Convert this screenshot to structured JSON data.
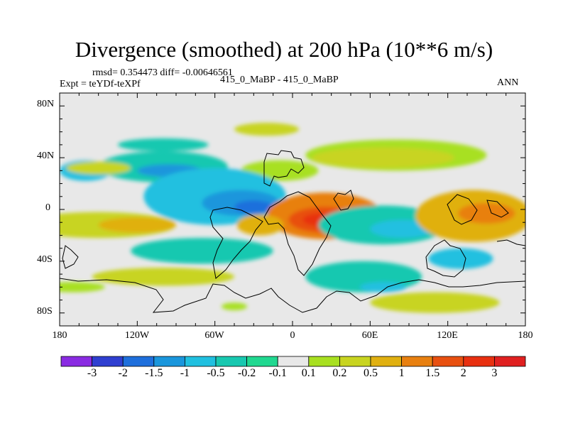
{
  "header": {
    "title": "Divergence (smoothed) at 200 hPa (10**6 m/s)",
    "stats": "rmsd= 0.354473 diff= -0.00646561",
    "experiment": "Expt = teYDf-teXPf",
    "cases": "415_0_MaBP - 415_0_MaBP",
    "season": "ANN"
  },
  "chart_data": {
    "type": "heatmap",
    "title": "Divergence (smoothed) at 200 hPa (10**6 m/s)",
    "projection": "cylindrical equidistant",
    "xlim": [
      -180,
      180
    ],
    "ylim": [
      -90,
      90
    ],
    "x_ticks": [
      {
        "value": -180,
        "label": "180"
      },
      {
        "value": -120,
        "label": "120W"
      },
      {
        "value": -60,
        "label": "60W"
      },
      {
        "value": 0,
        "label": "0"
      },
      {
        "value": 60,
        "label": "60E"
      },
      {
        "value": 120,
        "label": "120E"
      },
      {
        "value": 180,
        "label": "180"
      }
    ],
    "y_ticks": [
      {
        "value": 80,
        "label": "80N"
      },
      {
        "value": 40,
        "label": "40N"
      },
      {
        "value": 0,
        "label": "0"
      },
      {
        "value": -40,
        "label": "40S"
      },
      {
        "value": -80,
        "label": "80S"
      }
    ],
    "colorbar": {
      "levels": [
        "-3",
        "-2",
        "-1.5",
        "-1",
        "-0.5",
        "-0.2",
        "-0.1",
        "0.1",
        "0.2",
        "0.5",
        "1",
        "1.5",
        "2",
        "3"
      ],
      "colors": [
        "#8a2be2",
        "#2f3fd0",
        "#1e6fdc",
        "#1a96dc",
        "#20c0e0",
        "#18c8b0",
        "#20d890",
        "#e8e8e8",
        "#a8e020",
        "#c8d420",
        "#e0b010",
        "#e88010",
        "#e85010",
        "#e83010",
        "#e02020"
      ]
    },
    "field": [
      {
        "level": 9,
        "lon": -20,
        "lat": 62,
        "rlon": 25,
        "rlat": 5
      },
      {
        "level": 5,
        "lon": -100,
        "lat": 50,
        "rlon": 35,
        "rlat": 5
      },
      {
        "level": 8,
        "lon": 80,
        "lat": 42,
        "rlon": 70,
        "rlat": 12
      },
      {
        "level": 9,
        "lon": 70,
        "lat": 40,
        "rlon": 55,
        "rlat": 8
      },
      {
        "level": 5,
        "lon": -100,
        "lat": 33,
        "rlon": 50,
        "rlat": 12
      },
      {
        "level": 3,
        "lon": -95,
        "lat": 30,
        "rlon": 25,
        "rlat": 5
      },
      {
        "level": 4,
        "lon": -160,
        "lat": 30,
        "rlon": 20,
        "rlat": 8
      },
      {
        "level": 9,
        "lon": -150,
        "lat": 32,
        "rlon": 25,
        "rlat": 5
      },
      {
        "level": 8,
        "lon": -10,
        "lat": 30,
        "rlon": 30,
        "rlat": 8
      },
      {
        "level": 4,
        "lon": -60,
        "lat": 10,
        "rlon": 55,
        "rlat": 22
      },
      {
        "level": 3,
        "lon": -40,
        "lat": 5,
        "rlon": 30,
        "rlat": 10
      },
      {
        "level": 2,
        "lon": -30,
        "lat": 2,
        "rlon": 15,
        "rlat": 5
      },
      {
        "level": 9,
        "lon": -150,
        "lat": -12,
        "rlon": 60,
        "rlat": 10
      },
      {
        "level": 10,
        "lon": -120,
        "lat": -12,
        "rlon": 30,
        "rlat": 6
      },
      {
        "level": 11,
        "lon": 25,
        "lat": -5,
        "rlon": 45,
        "rlat": 18
      },
      {
        "level": 12,
        "lon": 25,
        "lat": -8,
        "rlon": 28,
        "rlat": 10
      },
      {
        "level": 13,
        "lon": 22,
        "lat": -8,
        "rlon": 14,
        "rlat": 5
      },
      {
        "level": 10,
        "lon": -25,
        "lat": -12,
        "rlon": 18,
        "rlat": 8
      },
      {
        "level": 5,
        "lon": 70,
        "lat": -12,
        "rlon": 50,
        "rlat": 15
      },
      {
        "level": 4,
        "lon": 85,
        "lat": -15,
        "rlon": 25,
        "rlat": 7
      },
      {
        "level": 5,
        "lon": -70,
        "lat": -32,
        "rlon": 55,
        "rlat": 10
      },
      {
        "level": 10,
        "lon": 140,
        "lat": -5,
        "rlon": 45,
        "rlat": 20
      },
      {
        "level": 11,
        "lon": 150,
        "lat": -3,
        "rlon": 22,
        "rlat": 8
      },
      {
        "level": 4,
        "lon": 130,
        "lat": -38,
        "rlon": 25,
        "rlat": 8
      },
      {
        "level": 9,
        "lon": -100,
        "lat": -52,
        "rlon": 55,
        "rlat": 7
      },
      {
        "level": 8,
        "lon": -170,
        "lat": -60,
        "rlon": 25,
        "rlat": 4
      },
      {
        "level": 5,
        "lon": 55,
        "lat": -52,
        "rlon": 45,
        "rlat": 12
      },
      {
        "level": 4,
        "lon": 70,
        "lat": -60,
        "rlon": 18,
        "rlat": 4
      },
      {
        "level": 9,
        "lon": 110,
        "lat": -72,
        "rlon": 50,
        "rlat": 8
      },
      {
        "level": 8,
        "lon": -45,
        "lat": -75,
        "rlon": 10,
        "rlat": 3
      }
    ]
  }
}
